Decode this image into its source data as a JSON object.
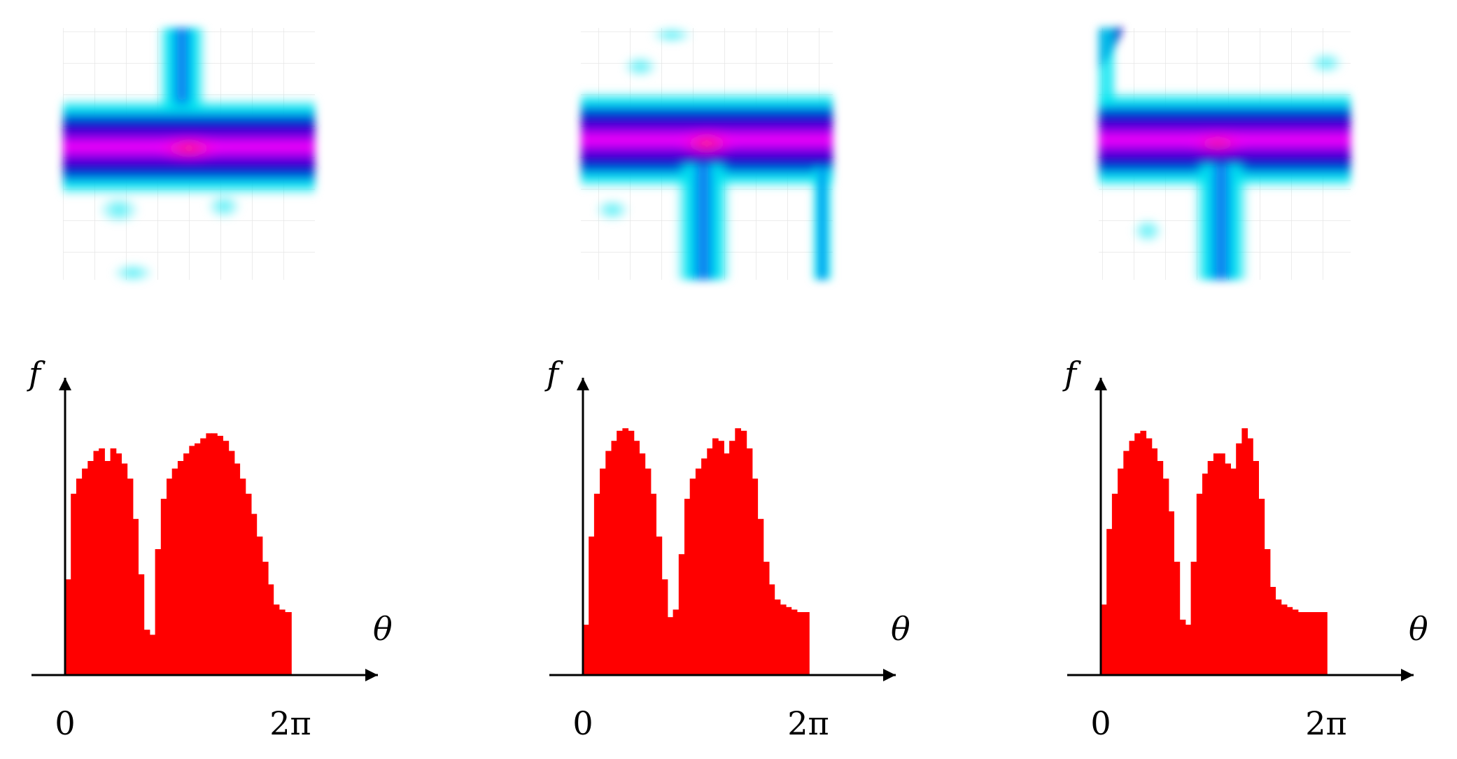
{
  "colors": {
    "histogram": "#ff0000",
    "axis": "#000000",
    "map_low": "#ffffff",
    "map_mid": "#00e5f0",
    "map_high_blue": "#0000c8",
    "map_peak": "#ff00ff"
  },
  "chart_data": [
    {
      "type": "bar",
      "title": "",
      "xlabel": "θ",
      "ylabel": "f",
      "xticks": [
        "0",
        "2π"
      ],
      "xlim": [
        0,
        6.2832
      ],
      "ylim": [
        0,
        1
      ],
      "grid": false,
      "x": [
        0.0,
        0.16,
        0.31,
        0.47,
        0.63,
        0.79,
        0.94,
        1.1,
        1.26,
        1.41,
        1.57,
        1.73,
        1.88,
        2.04,
        2.2,
        2.36,
        2.51,
        2.67,
        2.83,
        2.98,
        3.14,
        3.3,
        3.46,
        3.61,
        3.77,
        3.93,
        4.08,
        4.24,
        4.4,
        4.56,
        4.71,
        4.87,
        5.03,
        5.18,
        5.34,
        5.5,
        5.65,
        5.81,
        5.97,
        6.13,
        6.28
      ],
      "values": [
        0.38,
        0.72,
        0.78,
        0.82,
        0.85,
        0.89,
        0.9,
        0.85,
        0.9,
        0.88,
        0.84,
        0.78,
        0.62,
        0.4,
        0.18,
        0.16,
        0.5,
        0.7,
        0.78,
        0.82,
        0.85,
        0.88,
        0.91,
        0.92,
        0.94,
        0.96,
        0.96,
        0.95,
        0.93,
        0.89,
        0.84,
        0.78,
        0.72,
        0.64,
        0.55,
        0.45,
        0.36,
        0.28,
        0.26,
        0.25,
        0.25
      ]
    },
    {
      "type": "bar",
      "title": "",
      "xlabel": "θ",
      "ylabel": "f",
      "xticks": [
        "0",
        "2π"
      ],
      "xlim": [
        0,
        6.2832
      ],
      "ylim": [
        0,
        1
      ],
      "grid": false,
      "x": [
        0.0,
        0.16,
        0.31,
        0.47,
        0.63,
        0.79,
        0.94,
        1.1,
        1.26,
        1.41,
        1.57,
        1.73,
        1.88,
        2.04,
        2.2,
        2.36,
        2.51,
        2.67,
        2.83,
        2.98,
        3.14,
        3.3,
        3.46,
        3.61,
        3.77,
        3.93,
        4.08,
        4.24,
        4.4,
        4.56,
        4.71,
        4.87,
        5.03,
        5.18,
        5.34,
        5.5,
        5.65,
        5.81,
        5.97,
        6.13,
        6.28
      ],
      "values": [
        0.2,
        0.55,
        0.72,
        0.82,
        0.89,
        0.93,
        0.97,
        0.98,
        0.97,
        0.93,
        0.88,
        0.82,
        0.72,
        0.55,
        0.38,
        0.23,
        0.26,
        0.48,
        0.7,
        0.78,
        0.82,
        0.86,
        0.9,
        0.94,
        0.93,
        0.88,
        0.93,
        0.98,
        0.97,
        0.9,
        0.78,
        0.62,
        0.45,
        0.36,
        0.3,
        0.28,
        0.27,
        0.26,
        0.25,
        0.25,
        0.25
      ]
    },
    {
      "type": "bar",
      "title": "",
      "xlabel": "θ",
      "ylabel": "f",
      "xticks": [
        "0",
        "2π"
      ],
      "xlim": [
        0,
        6.2832
      ],
      "ylim": [
        0,
        1
      ],
      "grid": false,
      "x": [
        0.0,
        0.16,
        0.31,
        0.47,
        0.63,
        0.79,
        0.94,
        1.1,
        1.26,
        1.41,
        1.57,
        1.73,
        1.88,
        2.04,
        2.2,
        2.36,
        2.51,
        2.67,
        2.83,
        2.98,
        3.14,
        3.3,
        3.46,
        3.61,
        3.77,
        3.93,
        4.08,
        4.24,
        4.4,
        4.56,
        4.71,
        4.87,
        5.03,
        5.18,
        5.34,
        5.5,
        5.65,
        5.81,
        5.97,
        6.13,
        6.28
      ],
      "values": [
        0.28,
        0.58,
        0.72,
        0.82,
        0.89,
        0.93,
        0.96,
        0.97,
        0.94,
        0.9,
        0.85,
        0.78,
        0.65,
        0.45,
        0.22,
        0.2,
        0.45,
        0.72,
        0.8,
        0.85,
        0.88,
        0.88,
        0.84,
        0.82,
        0.92,
        0.98,
        0.94,
        0.85,
        0.7,
        0.5,
        0.35,
        0.3,
        0.28,
        0.27,
        0.26,
        0.25,
        0.25,
        0.25,
        0.25,
        0.25,
        0.25
      ]
    }
  ]
}
